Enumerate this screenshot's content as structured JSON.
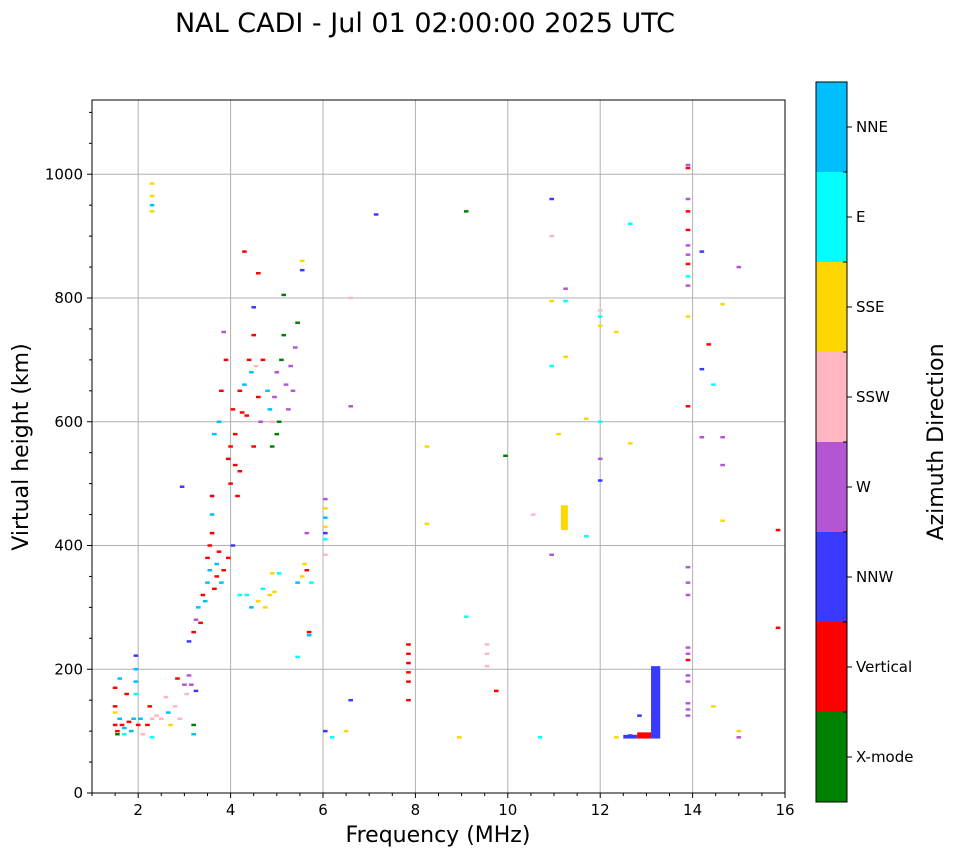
{
  "chart_data": {
    "type": "scatter",
    "title": "NAL CADI - Jul 01 02:00:00 2025 UTC",
    "xlabel": "Frequency (MHz)",
    "ylabel": "Virtual height (km)",
    "xlim": [
      1,
      16
    ],
    "ylim": [
      0,
      1120
    ],
    "xticks": [
      2,
      4,
      6,
      8,
      10,
      12,
      14,
      16
    ],
    "yticks": [
      0,
      200,
      400,
      600,
      800,
      1000
    ],
    "grid": true,
    "colorbar": {
      "title": "Azimuth Direction",
      "categories": [
        {
          "name": "X-mode",
          "color": "#008000"
        },
        {
          "name": "Vertical",
          "color": "#ff0000"
        },
        {
          "name": "NNW",
          "color": "#3a3aff"
        },
        {
          "name": "W",
          "color": "#b455d4"
        },
        {
          "name": "SSW",
          "color": "#ffb6c1"
        },
        {
          "name": "SSE",
          "color": "#ffd700"
        },
        {
          "name": "E",
          "color": "#00ffff"
        },
        {
          "name": "NNE",
          "color": "#00bfff"
        }
      ]
    },
    "points": [
      {
        "f": 1.5,
        "h": 170,
        "c": "Vertical"
      },
      {
        "f": 1.5,
        "h": 140,
        "c": "Vertical"
      },
      {
        "f": 1.5,
        "h": 130,
        "c": "SSE"
      },
      {
        "f": 1.5,
        "h": 110,
        "c": "Vertical"
      },
      {
        "f": 1.55,
        "h": 100,
        "c": "Vertical"
      },
      {
        "f": 1.55,
        "h": 95,
        "c": "X-mode"
      },
      {
        "f": 1.6,
        "h": 185,
        "c": "NNE"
      },
      {
        "f": 1.6,
        "h": 120,
        "c": "NNE"
      },
      {
        "f": 1.65,
        "h": 110,
        "c": "Vertical"
      },
      {
        "f": 1.7,
        "h": 105,
        "c": "NNE"
      },
      {
        "f": 1.7,
        "h": 95,
        "c": "E"
      },
      {
        "f": 1.75,
        "h": 160,
        "c": "Vertical"
      },
      {
        "f": 1.8,
        "h": 115,
        "c": "Vertical"
      },
      {
        "f": 1.85,
        "h": 100,
        "c": "NNE"
      },
      {
        "f": 1.9,
        "h": 120,
        "c": "NNE"
      },
      {
        "f": 1.95,
        "h": 222,
        "c": "NNW"
      },
      {
        "f": 1.95,
        "h": 200,
        "c": "NNE"
      },
      {
        "f": 1.95,
        "h": 180,
        "c": "NNE"
      },
      {
        "f": 1.95,
        "h": 160,
        "c": "E"
      },
      {
        "f": 2.0,
        "h": 110,
        "c": "Vertical"
      },
      {
        "f": 2.05,
        "h": 120,
        "c": "NNE"
      },
      {
        "f": 2.1,
        "h": 95,
        "c": "SSW"
      },
      {
        "f": 2.2,
        "h": 110,
        "c": "Vertical"
      },
      {
        "f": 2.25,
        "h": 140,
        "c": "Vertical"
      },
      {
        "f": 2.3,
        "h": 120,
        "c": "SSW"
      },
      {
        "f": 2.3,
        "h": 90,
        "c": "E"
      },
      {
        "f": 2.4,
        "h": 125,
        "c": "SSW"
      },
      {
        "f": 2.5,
        "h": 120,
        "c": "SSW"
      },
      {
        "f": 2.6,
        "h": 155,
        "c": "SSW"
      },
      {
        "f": 2.65,
        "h": 130,
        "c": "NNE"
      },
      {
        "f": 2.7,
        "h": 110,
        "c": "SSE"
      },
      {
        "f": 2.8,
        "h": 140,
        "c": "SSW"
      },
      {
        "f": 2.85,
        "h": 185,
        "c": "Vertical"
      },
      {
        "f": 2.9,
        "h": 120,
        "c": "SSW"
      },
      {
        "f": 3.0,
        "h": 175,
        "c": "W"
      },
      {
        "f": 3.05,
        "h": 160,
        "c": "SSW"
      },
      {
        "f": 3.1,
        "h": 190,
        "c": "W"
      },
      {
        "f": 3.15,
        "h": 175,
        "c": "W"
      },
      {
        "f": 3.2,
        "h": 110,
        "c": "X-mode"
      },
      {
        "f": 3.2,
        "h": 95,
        "c": "NNE"
      },
      {
        "f": 3.25,
        "h": 165,
        "c": "NNW"
      },
      {
        "f": 2.3,
        "h": 985,
        "c": "SSE"
      },
      {
        "f": 2.3,
        "h": 965,
        "c": "SSE"
      },
      {
        "f": 2.3,
        "h": 950,
        "c": "NNE"
      },
      {
        "f": 2.3,
        "h": 940,
        "c": "SSE"
      },
      {
        "f": 2.95,
        "h": 495,
        "c": "NNW"
      },
      {
        "f": 3.1,
        "h": 245,
        "c": "NNW"
      },
      {
        "f": 3.2,
        "h": 260,
        "c": "Vertical"
      },
      {
        "f": 3.25,
        "h": 280,
        "c": "W"
      },
      {
        "f": 3.3,
        "h": 300,
        "c": "NNE"
      },
      {
        "f": 3.35,
        "h": 275,
        "c": "Vertical"
      },
      {
        "f": 3.4,
        "h": 320,
        "c": "Vertical"
      },
      {
        "f": 3.45,
        "h": 310,
        "c": "NNE"
      },
      {
        "f": 3.5,
        "h": 340,
        "c": "NNE"
      },
      {
        "f": 3.5,
        "h": 380,
        "c": "Vertical"
      },
      {
        "f": 3.55,
        "h": 360,
        "c": "NNE"
      },
      {
        "f": 3.55,
        "h": 400,
        "c": "Vertical"
      },
      {
        "f": 3.6,
        "h": 420,
        "c": "Vertical"
      },
      {
        "f": 3.6,
        "h": 450,
        "c": "NNE"
      },
      {
        "f": 3.6,
        "h": 480,
        "c": "Vertical"
      },
      {
        "f": 3.65,
        "h": 330,
        "c": "Vertical"
      },
      {
        "f": 3.7,
        "h": 350,
        "c": "Vertical"
      },
      {
        "f": 3.7,
        "h": 370,
        "c": "NNE"
      },
      {
        "f": 3.75,
        "h": 390,
        "c": "Vertical"
      },
      {
        "f": 3.8,
        "h": 340,
        "c": "NNE"
      },
      {
        "f": 3.85,
        "h": 360,
        "c": "Vertical"
      },
      {
        "f": 3.95,
        "h": 380,
        "c": "Vertical"
      },
      {
        "f": 4.05,
        "h": 400,
        "c": "NNW"
      },
      {
        "f": 3.65,
        "h": 580,
        "c": "NNE"
      },
      {
        "f": 3.75,
        "h": 600,
        "c": "NNE"
      },
      {
        "f": 3.8,
        "h": 650,
        "c": "Vertical"
      },
      {
        "f": 3.85,
        "h": 745,
        "c": "W"
      },
      {
        "f": 3.9,
        "h": 700,
        "c": "Vertical"
      },
      {
        "f": 3.95,
        "h": 540,
        "c": "Vertical"
      },
      {
        "f": 4.0,
        "h": 560,
        "c": "Vertical"
      },
      {
        "f": 4.0,
        "h": 500,
        "c": "Vertical"
      },
      {
        "f": 4.05,
        "h": 620,
        "c": "Vertical"
      },
      {
        "f": 4.1,
        "h": 580,
        "c": "Vertical"
      },
      {
        "f": 4.1,
        "h": 530,
        "c": "Vertical"
      },
      {
        "f": 4.15,
        "h": 480,
        "c": "Vertical"
      },
      {
        "f": 4.2,
        "h": 650,
        "c": "Vertical"
      },
      {
        "f": 4.2,
        "h": 520,
        "c": "Vertical"
      },
      {
        "f": 4.25,
        "h": 615,
        "c": "Vertical"
      },
      {
        "f": 4.3,
        "h": 660,
        "c": "NNE"
      },
      {
        "f": 4.35,
        "h": 610,
        "c": "Vertical"
      },
      {
        "f": 4.4,
        "h": 700,
        "c": "Vertical"
      },
      {
        "f": 4.45,
        "h": 680,
        "c": "NNE"
      },
      {
        "f": 4.5,
        "h": 560,
        "c": "Vertical"
      },
      {
        "f": 4.5,
        "h": 740,
        "c": "Vertical"
      },
      {
        "f": 4.55,
        "h": 690,
        "c": "SSW"
      },
      {
        "f": 4.6,
        "h": 640,
        "c": "Vertical"
      },
      {
        "f": 4.65,
        "h": 600,
        "c": "W"
      },
      {
        "f": 4.7,
        "h": 700,
        "c": "Vertical"
      },
      {
        "f": 4.8,
        "h": 650,
        "c": "NNE"
      },
      {
        "f": 4.85,
        "h": 620,
        "c": "NNE"
      },
      {
        "f": 4.9,
        "h": 560,
        "c": "X-mode"
      },
      {
        "f": 4.9,
        "h": 600,
        "c": "SSW"
      },
      {
        "f": 4.95,
        "h": 640,
        "c": "W"
      },
      {
        "f": 5.0,
        "h": 680,
        "c": "W"
      },
      {
        "f": 5.0,
        "h": 580,
        "c": "X-mode"
      },
      {
        "f": 5.05,
        "h": 600,
        "c": "X-mode"
      },
      {
        "f": 5.1,
        "h": 700,
        "c": "X-mode"
      },
      {
        "f": 5.15,
        "h": 740,
        "c": "X-mode"
      },
      {
        "f": 5.2,
        "h": 660,
        "c": "W"
      },
      {
        "f": 5.25,
        "h": 620,
        "c": "W"
      },
      {
        "f": 5.3,
        "h": 690,
        "c": "W"
      },
      {
        "f": 5.35,
        "h": 650,
        "c": "W"
      },
      {
        "f": 5.4,
        "h": 720,
        "c": "W"
      },
      {
        "f": 5.45,
        "h": 760,
        "c": "X-mode"
      },
      {
        "f": 4.2,
        "h": 320,
        "c": "E"
      },
      {
        "f": 4.35,
        "h": 320,
        "c": "E"
      },
      {
        "f": 4.45,
        "h": 300,
        "c": "NNE"
      },
      {
        "f": 4.6,
        "h": 310,
        "c": "SSE"
      },
      {
        "f": 4.7,
        "h": 330,
        "c": "E"
      },
      {
        "f": 4.75,
        "h": 300,
        "c": "SSE"
      },
      {
        "f": 4.85,
        "h": 320,
        "c": "SSE"
      },
      {
        "f": 4.9,
        "h": 355,
        "c": "SSE"
      },
      {
        "f": 4.95,
        "h": 325,
        "c": "SSE"
      },
      {
        "f": 5.05,
        "h": 355,
        "c": "E"
      },
      {
        "f": 5.45,
        "h": 340,
        "c": "NNE"
      },
      {
        "f": 5.55,
        "h": 350,
        "c": "SSE"
      },
      {
        "f": 5.6,
        "h": 370,
        "c": "SSE"
      },
      {
        "f": 5.65,
        "h": 360,
        "c": "Vertical"
      },
      {
        "f": 5.65,
        "h": 420,
        "c": "W"
      },
      {
        "f": 5.75,
        "h": 340,
        "c": "E"
      },
      {
        "f": 5.45,
        "h": 220,
        "c": "E"
      },
      {
        "f": 5.7,
        "h": 260,
        "c": "Vertical"
      },
      {
        "f": 5.7,
        "h": 255,
        "c": "NNE"
      },
      {
        "f": 4.3,
        "h": 875,
        "c": "Vertical"
      },
      {
        "f": 4.6,
        "h": 840,
        "c": "Vertical"
      },
      {
        "f": 4.5,
        "h": 785,
        "c": "NNW"
      },
      {
        "f": 5.15,
        "h": 805,
        "c": "X-mode"
      },
      {
        "f": 5.55,
        "h": 860,
        "c": "SSE"
      },
      {
        "f": 5.55,
        "h": 845,
        "c": "NNW"
      },
      {
        "f": 6.05,
        "h": 475,
        "c": "W"
      },
      {
        "f": 6.05,
        "h": 460,
        "c": "SSE"
      },
      {
        "f": 6.05,
        "h": 445,
        "c": "NNE"
      },
      {
        "f": 6.05,
        "h": 430,
        "c": "SSE"
      },
      {
        "f": 6.05,
        "h": 420,
        "c": "NNW"
      },
      {
        "f": 6.05,
        "h": 410,
        "c": "E"
      },
      {
        "f": 6.05,
        "h": 385,
        "c": "SSW"
      },
      {
        "f": 6.05,
        "h": 100,
        "c": "NNW"
      },
      {
        "f": 6.2,
        "h": 90,
        "c": "E"
      },
      {
        "f": 6.5,
        "h": 100,
        "c": "SSE"
      },
      {
        "f": 6.6,
        "h": 150,
        "c": "NNW"
      },
      {
        "f": 6.6,
        "h": 625,
        "c": "W"
      },
      {
        "f": 6.6,
        "h": 800,
        "c": "SSW"
      },
      {
        "f": 7.15,
        "h": 935,
        "c": "NNW"
      },
      {
        "f": 7.85,
        "h": 240,
        "c": "Vertical"
      },
      {
        "f": 7.85,
        "h": 225,
        "c": "Vertical"
      },
      {
        "f": 7.85,
        "h": 210,
        "c": "Vertical"
      },
      {
        "f": 7.85,
        "h": 195,
        "c": "Vertical"
      },
      {
        "f": 7.85,
        "h": 180,
        "c": "Vertical"
      },
      {
        "f": 7.85,
        "h": 150,
        "c": "Vertical"
      },
      {
        "f": 8.25,
        "h": 560,
        "c": "SSE"
      },
      {
        "f": 8.25,
        "h": 435,
        "c": "SSE"
      },
      {
        "f": 8.95,
        "h": 90,
        "c": "SSE"
      },
      {
        "f": 9.1,
        "h": 940,
        "c": "X-mode"
      },
      {
        "f": 9.1,
        "h": 285,
        "c": "E"
      },
      {
        "f": 9.55,
        "h": 240,
        "c": "SSW"
      },
      {
        "f": 9.55,
        "h": 225,
        "c": "SSW"
      },
      {
        "f": 9.55,
        "h": 205,
        "c": "SSW"
      },
      {
        "f": 9.75,
        "h": 165,
        "c": "Vertical"
      },
      {
        "f": 9.95,
        "h": 545,
        "c": "X-mode"
      },
      {
        "f": 10.55,
        "h": 450,
        "c": "SSW"
      },
      {
        "f": 10.7,
        "h": 90,
        "c": "E"
      },
      {
        "f": 10.95,
        "h": 960,
        "c": "NNW"
      },
      {
        "f": 10.95,
        "h": 900,
        "c": "SSW"
      },
      {
        "f": 10.95,
        "h": 795,
        "c": "SSE"
      },
      {
        "f": 10.95,
        "h": 690,
        "c": "E"
      },
      {
        "f": 10.95,
        "h": 385,
        "c": "W"
      },
      {
        "f": 11.1,
        "h": 580,
        "c": "SSE"
      },
      {
        "f": 11.25,
        "h": 815,
        "c": "W"
      },
      {
        "f": 11.25,
        "h": 795,
        "c": "E"
      },
      {
        "f": 11.25,
        "h": 705,
        "c": "SSE"
      },
      {
        "f": 11.7,
        "h": 605,
        "c": "SSE"
      },
      {
        "f": 11.7,
        "h": 415,
        "c": "E"
      },
      {
        "f": 12.0,
        "h": 780,
        "c": "SSW"
      },
      {
        "f": 12.0,
        "h": 770,
        "c": "E"
      },
      {
        "f": 12.0,
        "h": 755,
        "c": "SSE"
      },
      {
        "f": 12.0,
        "h": 600,
        "c": "E"
      },
      {
        "f": 12.0,
        "h": 540,
        "c": "W"
      },
      {
        "f": 12.0,
        "h": 505,
        "c": "NNW"
      },
      {
        "f": 12.35,
        "h": 745,
        "c": "SSE"
      },
      {
        "f": 12.65,
        "h": 920,
        "c": "E"
      },
      {
        "f": 12.65,
        "h": 565,
        "c": "SSE"
      },
      {
        "f": 12.35,
        "h": 90,
        "c": "SSE"
      },
      {
        "f": 12.65,
        "h": 93,
        "c": "NNW"
      },
      {
        "f": 12.85,
        "h": 125,
        "c": "NNW"
      },
      {
        "f": 13.9,
        "h": 1015,
        "c": "W"
      },
      {
        "f": 13.9,
        "h": 1010,
        "c": "Vertical"
      },
      {
        "f": 13.9,
        "h": 960,
        "c": "W"
      },
      {
        "f": 13.9,
        "h": 940,
        "c": "Vertical"
      },
      {
        "f": 13.9,
        "h": 910,
        "c": "Vertical"
      },
      {
        "f": 13.9,
        "h": 885,
        "c": "W"
      },
      {
        "f": 13.9,
        "h": 870,
        "c": "W"
      },
      {
        "f": 13.9,
        "h": 855,
        "c": "Vertical"
      },
      {
        "f": 13.9,
        "h": 835,
        "c": "E"
      },
      {
        "f": 13.9,
        "h": 820,
        "c": "W"
      },
      {
        "f": 13.9,
        "h": 770,
        "c": "SSE"
      },
      {
        "f": 13.9,
        "h": 625,
        "c": "Vertical"
      },
      {
        "f": 13.9,
        "h": 365,
        "c": "W"
      },
      {
        "f": 13.9,
        "h": 340,
        "c": "W"
      },
      {
        "f": 13.9,
        "h": 320,
        "c": "W"
      },
      {
        "f": 13.9,
        "h": 235,
        "c": "W"
      },
      {
        "f": 13.9,
        "h": 225,
        "c": "W"
      },
      {
        "f": 13.9,
        "h": 215,
        "c": "Vertical"
      },
      {
        "f": 13.9,
        "h": 190,
        "c": "W"
      },
      {
        "f": 13.9,
        "h": 180,
        "c": "W"
      },
      {
        "f": 13.9,
        "h": 145,
        "c": "W"
      },
      {
        "f": 13.9,
        "h": 135,
        "c": "W"
      },
      {
        "f": 13.9,
        "h": 125,
        "c": "W"
      },
      {
        "f": 14.2,
        "h": 875,
        "c": "NNW"
      },
      {
        "f": 14.2,
        "h": 685,
        "c": "NNW"
      },
      {
        "f": 14.2,
        "h": 575,
        "c": "W"
      },
      {
        "f": 14.35,
        "h": 725,
        "c": "Vertical"
      },
      {
        "f": 14.45,
        "h": 660,
        "c": "E"
      },
      {
        "f": 14.45,
        "h": 140,
        "c": "SSE"
      },
      {
        "f": 14.65,
        "h": 790,
        "c": "SSE"
      },
      {
        "f": 14.65,
        "h": 575,
        "c": "W"
      },
      {
        "f": 14.65,
        "h": 530,
        "c": "W"
      },
      {
        "f": 14.65,
        "h": 440,
        "c": "SSE"
      },
      {
        "f": 15.0,
        "h": 850,
        "c": "W"
      },
      {
        "f": 15.0,
        "h": 100,
        "c": "SSE"
      },
      {
        "f": 15.0,
        "h": 90,
        "c": "W"
      },
      {
        "f": 15.85,
        "h": 425,
        "c": "Vertical"
      },
      {
        "f": 15.85,
        "h": 267,
        "c": "Vertical"
      }
    ],
    "bars": [
      {
        "f0": 13.1,
        "f1": 13.3,
        "h0": 88,
        "h1": 205,
        "c": "NNW"
      },
      {
        "f0": 12.8,
        "f1": 13.1,
        "h0": 88,
        "h1": 98,
        "c": "Vertical"
      },
      {
        "f0": 11.15,
        "f1": 11.3,
        "h0": 425,
        "h1": 465,
        "c": "SSE"
      },
      {
        "f0": 12.5,
        "f1": 12.8,
        "h0": 88,
        "h1": 94,
        "c": "NNW"
      }
    ]
  }
}
